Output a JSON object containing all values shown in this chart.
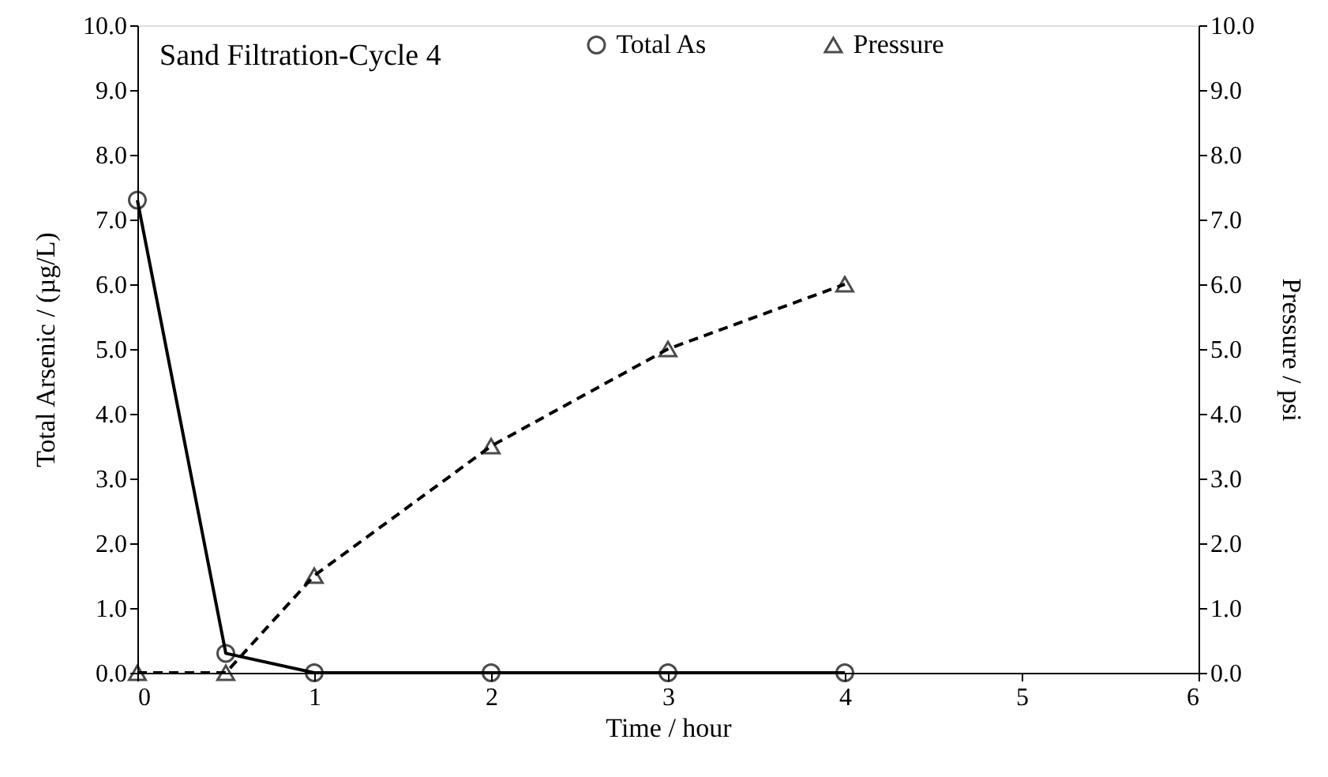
{
  "chart_data": {
    "type": "line",
    "title": "Sand Filtration-Cycle 4",
    "xlabel": "Time / hour",
    "ylabel": "Total Arsenic / (µg/L)",
    "y2label": "Pressure / psi",
    "x": [
      0,
      0.5,
      1,
      2,
      3,
      4
    ],
    "series": [
      {
        "name": "Total As",
        "color": "#000000",
        "values": [
          7.3,
          0.3,
          0,
          0,
          0,
          0
        ],
        "marker": "circle",
        "line_style": "solid"
      },
      {
        "name": "Pressure",
        "color": "#000000",
        "values": [
          0,
          0,
          1.5,
          3.5,
          5,
          6
        ],
        "marker": "triangle",
        "line_style": "dashed",
        "axis": "y2"
      }
    ],
    "xlim": [
      0,
      6
    ],
    "xticks": [
      0,
      1,
      2,
      3,
      4,
      5,
      6
    ],
    "ylim": [
      0,
      10
    ],
    "yticks": [
      {
        "value": 0,
        "label": "0.0"
      },
      {
        "value": 1,
        "label": "1.0"
      },
      {
        "value": 2,
        "label": "2.0"
      },
      {
        "value": 3,
        "label": "3.0"
      },
      {
        "value": 4,
        "label": "4.0"
      },
      {
        "value": 5,
        "label": "5.0"
      },
      {
        "value": 6,
        "label": "6.0"
      },
      {
        "value": 7,
        "label": "7.0"
      },
      {
        "value": 8,
        "label": "8.0"
      },
      {
        "value": 9,
        "label": "9.0"
      },
      {
        "value": 10,
        "label": "10.0"
      }
    ],
    "y2lim": [
      0,
      10
    ],
    "y2ticks": [
      {
        "value": 0,
        "label": "0.0"
      },
      {
        "value": 1,
        "label": "1.0"
      },
      {
        "value": 2,
        "label": "2.0"
      },
      {
        "value": 3,
        "label": "3.0"
      },
      {
        "value": 4,
        "label": "4.0"
      },
      {
        "value": 5,
        "label": "5.0"
      },
      {
        "value": 6,
        "label": "6.0"
      },
      {
        "value": 7,
        "label": "7.0"
      },
      {
        "value": 8,
        "label": "8.0"
      },
      {
        "value": 9,
        "label": "9.0"
      },
      {
        "value": 10,
        "label": "10.0"
      }
    ],
    "grid": false,
    "legend": "top"
  }
}
